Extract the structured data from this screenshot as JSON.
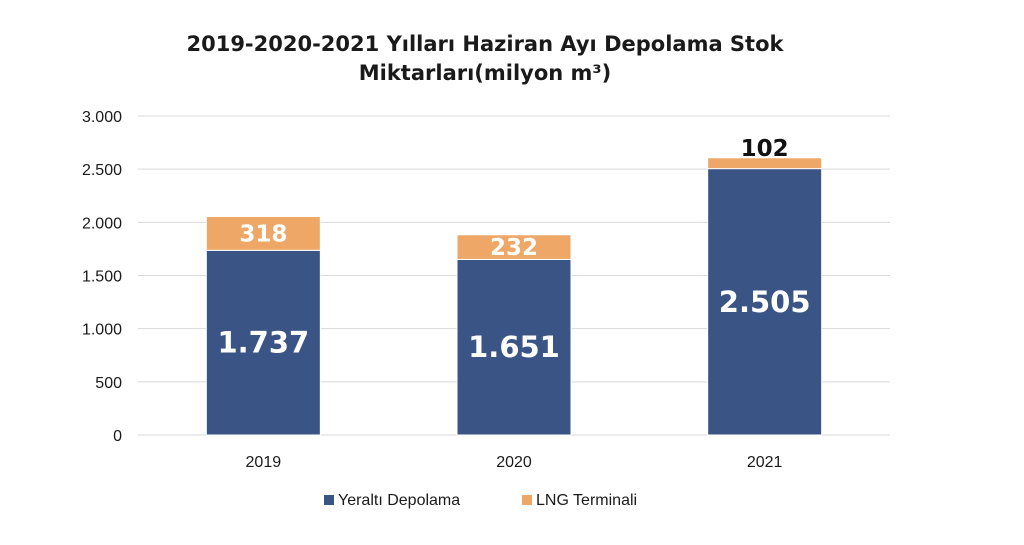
{
  "chart_data": {
    "type": "bar",
    "stacked": true,
    "title_line1": "2019-2020-2021 Yılları Haziran Ayı Depolama Stok",
    "title_line2": "Miktarları(milyon m³)",
    "categories": [
      "2019",
      "2020",
      "2021"
    ],
    "series": [
      {
        "name": "Yeraltı Depolama",
        "color": "#3b5486",
        "values": [
          1737,
          1651,
          2505
        ],
        "labels": [
          "1.737",
          "1.651",
          "2.505"
        ]
      },
      {
        "name": "LNG Terminali",
        "color": "#eea766",
        "values": [
          318,
          232,
          102
        ],
        "labels": [
          "318",
          "232",
          "102"
        ]
      }
    ],
    "ylim": [
      0,
      3000
    ],
    "yticks": [
      0,
      500,
      1000,
      1500,
      2000,
      2500,
      3000
    ],
    "ytick_labels": [
      "0",
      "500",
      "1.000",
      "1.500",
      "2.000",
      "2.500",
      "3.000"
    ],
    "grid": true,
    "legend_position": "bottom"
  }
}
